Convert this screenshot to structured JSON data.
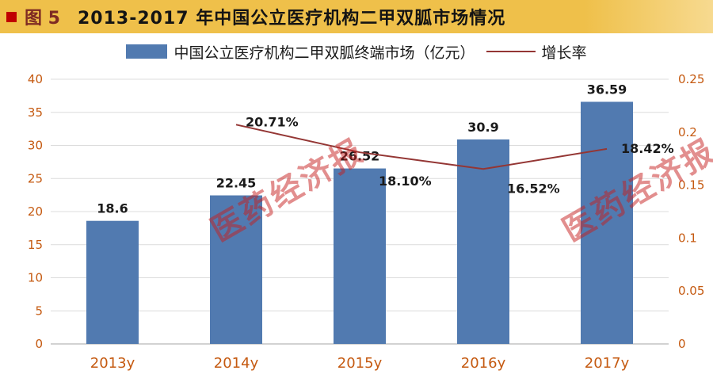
{
  "header": {
    "figure_label": "图 5",
    "title": "2013-2017 年中国公立医疗机构二甲双胍市场情况"
  },
  "legend": {
    "bar_label": "中国公立医疗机构二甲双胍终端市场（亿元）",
    "line_label": "增长率"
  },
  "watermark": {
    "text": "医药经济报"
  },
  "colors": {
    "banner": "#EFC04A",
    "bar": "#517AB0",
    "line": "#943634",
    "axis_text": "#C55A11",
    "grid": "#DCDCDC",
    "axis_line": "#A6A6A6",
    "watermark": "#C51E1E"
  },
  "chart_data": {
    "type": "bar+line",
    "title": "2013-2017 年中国公立医疗机构二甲双胍市场情况",
    "categories": [
      "2013y",
      "2014y",
      "2015y",
      "2016y",
      "2017y"
    ],
    "series": [
      {
        "name": "中国公立医疗机构二甲双胍终端市场（亿元）",
        "type": "bar",
        "axis": "left",
        "values": [
          18.6,
          22.45,
          26.52,
          30.9,
          36.59
        ],
        "labels": [
          "18.6",
          "22.45",
          "26.52",
          "30.9",
          "36.59"
        ]
      },
      {
        "name": "增长率",
        "type": "line",
        "axis": "right",
        "values": [
          null,
          0.2071,
          0.181,
          0.1652,
          0.1842
        ],
        "labels": [
          null,
          "20.71%",
          "18.10%",
          "16.52%",
          "18.42%"
        ]
      }
    ],
    "left_axis": {
      "min": 0,
      "max": 40,
      "step": 5,
      "ticks": [
        "0",
        "5",
        "10",
        "15",
        "20",
        "25",
        "30",
        "35",
        "40"
      ]
    },
    "right_axis": {
      "min": 0,
      "max": 0.25,
      "step": 0.05,
      "ticks": [
        "0",
        "0.05",
        "0.1",
        "0.15",
        "0.2",
        "0.25"
      ]
    },
    "grid": true,
    "legend_position": "top"
  }
}
